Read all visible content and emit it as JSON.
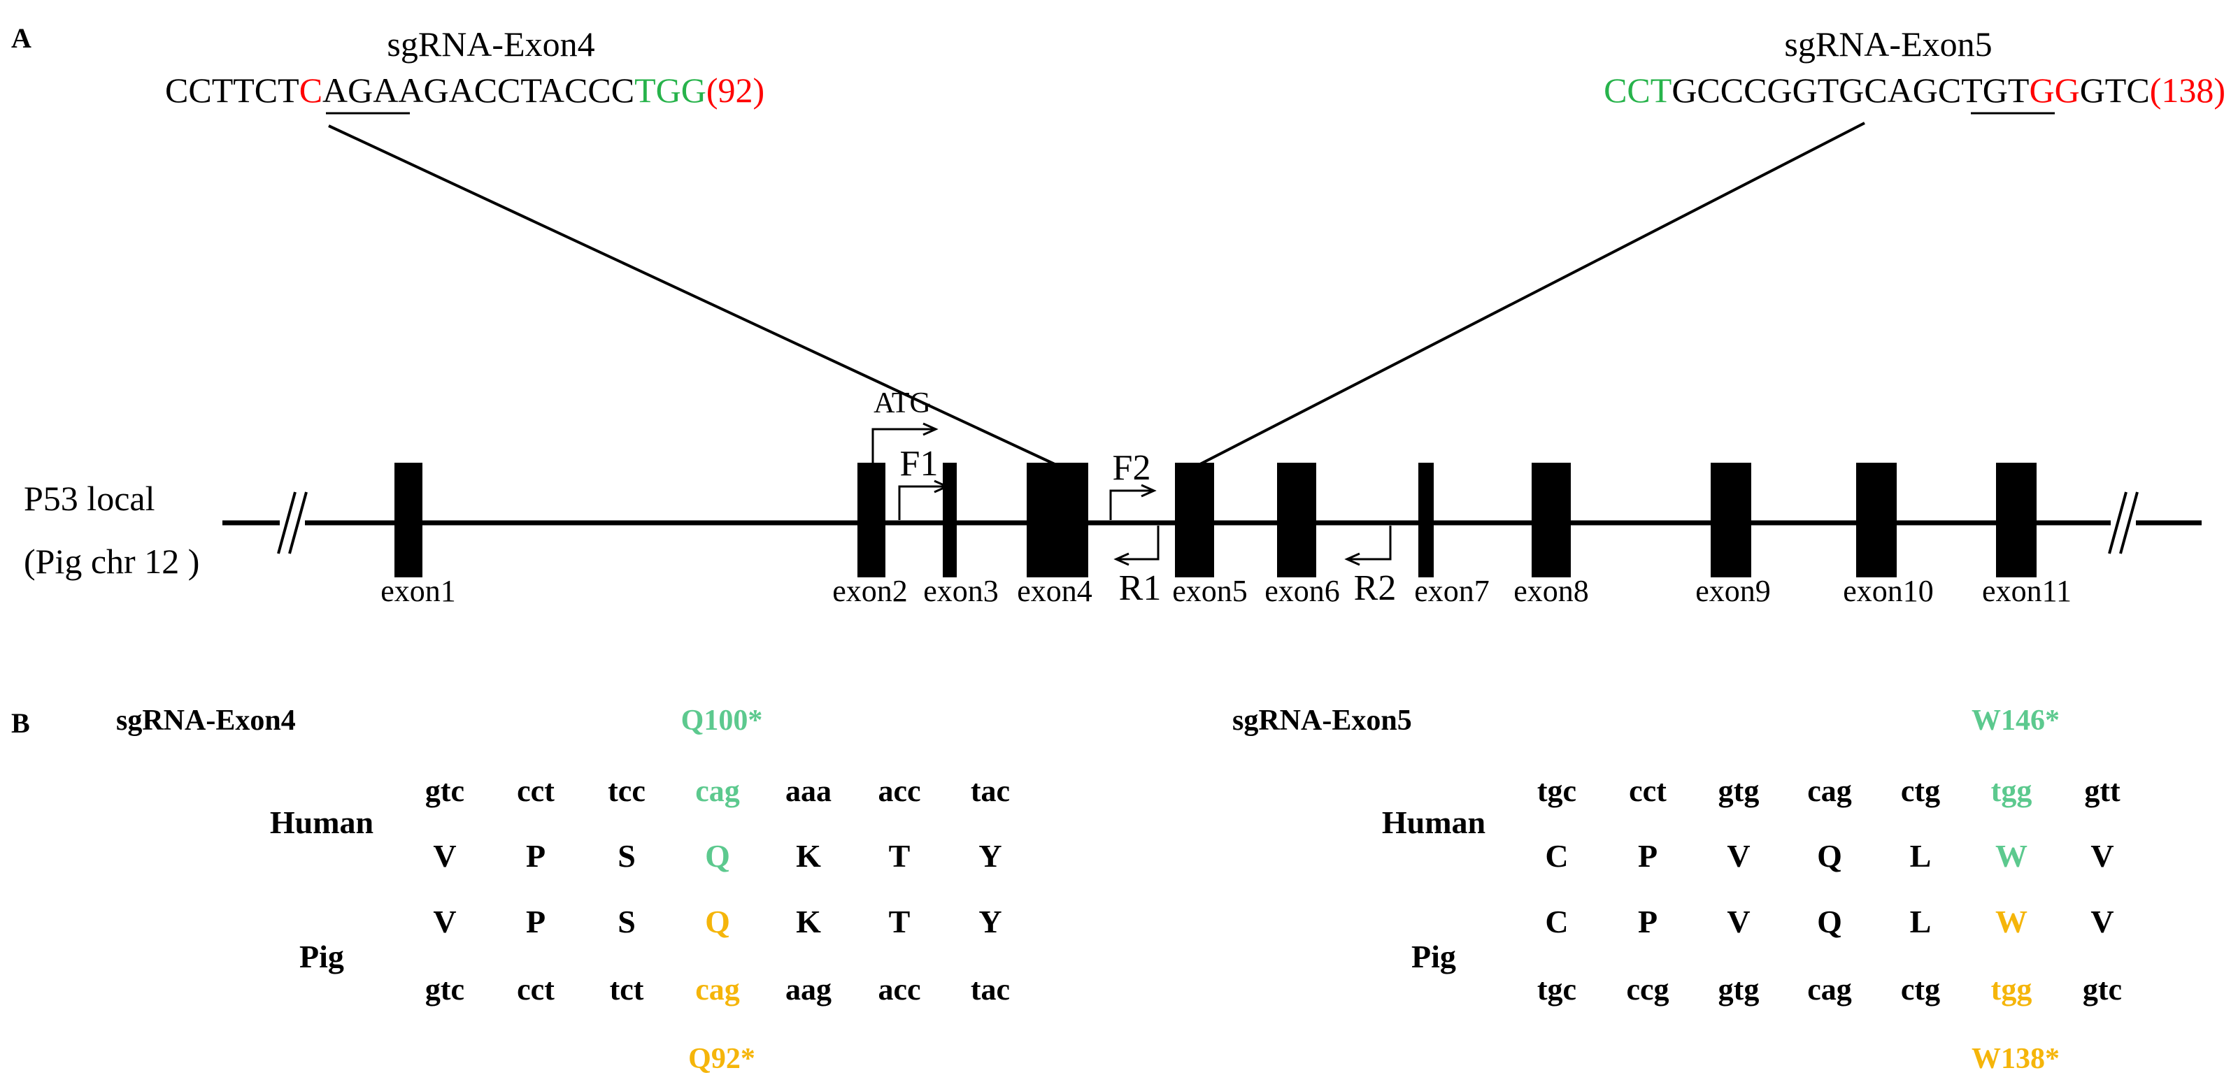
{
  "colors": {
    "black": "#000000",
    "red": "#ff0000",
    "pam_green": "#27b34b",
    "human_green": "#5cc98e",
    "pig_orange": "#f5b50a"
  },
  "panel_a": {
    "letter": "A",
    "locus_label_line1": "P53 local",
    "locus_label_line2": "(Pig chr 12 )",
    "sgrna_exon4": {
      "title": "sgRNA-Exon4",
      "segments": [
        {
          "text": "CCTTCT",
          "color": "black"
        },
        {
          "text": "C",
          "color": "red"
        },
        {
          "text": "AGAAGACCTACCC",
          "color": "black"
        },
        {
          "text": "TGG",
          "color": "pam_green"
        },
        {
          "text": "(92)",
          "color": "red"
        }
      ]
    },
    "sgrna_exon5": {
      "title": "sgRNA-Exon5",
      "segments": [
        {
          "text": "CCT",
          "color": "pam_green"
        },
        {
          "text": "GCCCGGTGCAGCTGT",
          "color": "black"
        },
        {
          "text": "GG",
          "color": "red"
        },
        {
          "text": "GTC",
          "color": "black"
        },
        {
          "text": "(138)",
          "color": "red"
        }
      ]
    },
    "exons": [
      {
        "label": "exon1"
      },
      {
        "label": "exon2"
      },
      {
        "label": "exon3"
      },
      {
        "label": "exon4"
      },
      {
        "label": "exon5"
      },
      {
        "label": "exon6"
      },
      {
        "label": "exon7"
      },
      {
        "label": "exon8"
      },
      {
        "label": "exon9"
      },
      {
        "label": "exon10"
      },
      {
        "label": "exon11"
      }
    ],
    "start_codon": "ATG",
    "primers": {
      "f1": "F1",
      "f2": "F2",
      "r1": "R1",
      "r2": "R2"
    }
  },
  "panel_b": {
    "letter": "B",
    "exon4": {
      "title": "sgRNA-Exon4",
      "human_mutation": "Q100*",
      "pig_mutation": "Q92*",
      "highlight_index": 3,
      "human_codons": [
        "gtc",
        "cct",
        "tcc",
        "cag",
        "aaa",
        "acc",
        "tac"
      ],
      "human_aa": [
        "V",
        "P",
        "S",
        "Q",
        "K",
        "T",
        "Y"
      ],
      "pig_aa": [
        "V",
        "P",
        "S",
        "Q",
        "K",
        "T",
        "Y"
      ],
      "pig_codons": [
        "gtc",
        "cct",
        "tct",
        "cag",
        "aag",
        "acc",
        "tac"
      ]
    },
    "exon5": {
      "title": "sgRNA-Exon5",
      "human_mutation": "W146*",
      "pig_mutation": "W138*",
      "highlight_index": 5,
      "human_codons": [
        "tgc",
        "cct",
        "gtg",
        "cag",
        "ctg",
        "tgg",
        "gtt"
      ],
      "human_aa": [
        "C",
        "P",
        "V",
        "Q",
        "L",
        "W",
        "V"
      ],
      "pig_aa": [
        "C",
        "P",
        "V",
        "Q",
        "L",
        "W",
        "V"
      ],
      "pig_codons": [
        "tgc",
        "ccg",
        "gtg",
        "cag",
        "ctg",
        "tgg",
        "gtc"
      ]
    },
    "species": {
      "human": "Human",
      "pig": "Pig"
    }
  }
}
